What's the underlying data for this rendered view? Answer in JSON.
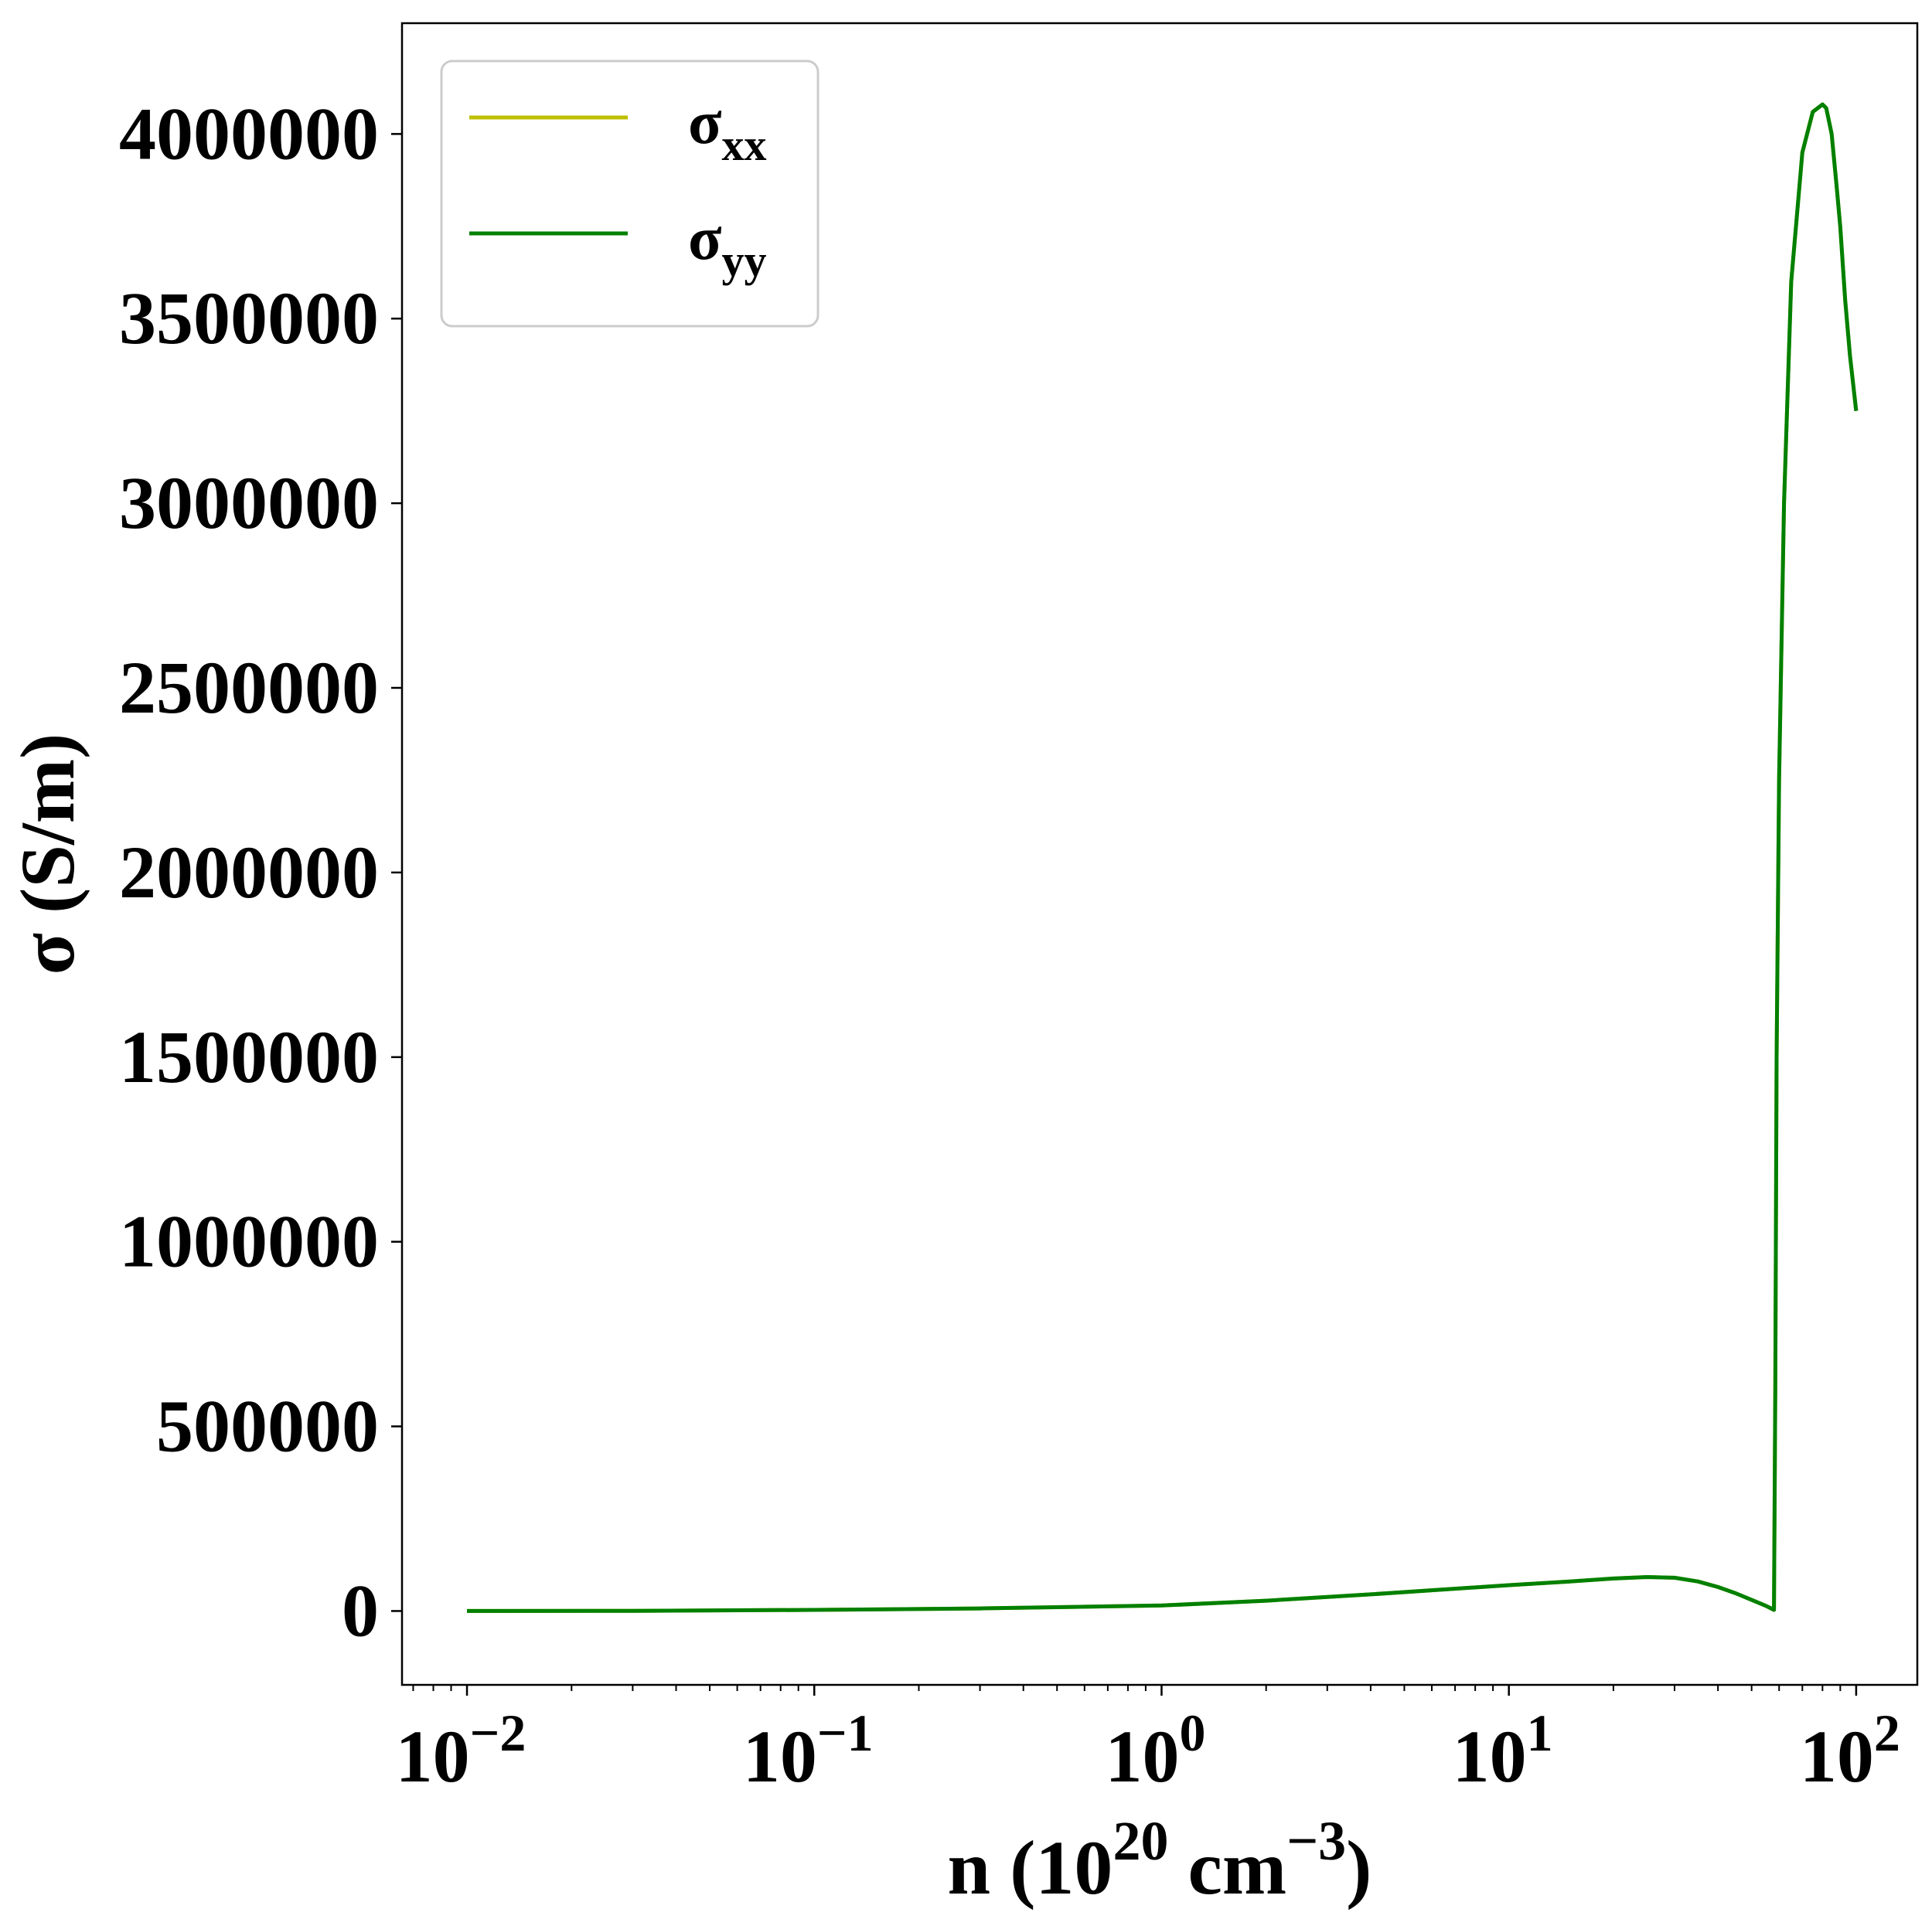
{
  "chart_data": {
    "type": "line",
    "xscale": "log",
    "xlim": [
      0.0065,
      150
    ],
    "ylim": [
      -200000,
      4300000
    ],
    "grid": false,
    "legend_position": "top-left",
    "xlabel": {
      "base": "n (10",
      "exp1": "20",
      "mid": " cm",
      "exp2": "−3",
      "end": ")"
    },
    "ylabel": "σ (S/m)",
    "x_ticks": [
      {
        "value": 0.01,
        "base": "10",
        "exp": "−2"
      },
      {
        "value": 0.1,
        "base": "10",
        "exp": "−1"
      },
      {
        "value": 1,
        "base": "10",
        "exp": "0"
      },
      {
        "value": 10,
        "base": "10",
        "exp": "1"
      },
      {
        "value": 100,
        "base": "10",
        "exp": "2"
      }
    ],
    "y_ticks": [
      {
        "value": 0,
        "label": "0"
      },
      {
        "value": 500000,
        "label": "500000"
      },
      {
        "value": 1000000,
        "label": "1000000"
      },
      {
        "value": 1500000,
        "label": "1500000"
      },
      {
        "value": 2000000,
        "label": "2000000"
      },
      {
        "value": 2500000,
        "label": "2500000"
      },
      {
        "value": 3000000,
        "label": "3000000"
      },
      {
        "value": 3500000,
        "label": "3500000"
      },
      {
        "value": 4000000,
        "label": "4000000"
      }
    ],
    "series": [
      {
        "name": "σ",
        "subscript": "xx",
        "color": "#bfbf00",
        "x": [
          0.01,
          0.03,
          0.1,
          0.3,
          1,
          2,
          4,
          10,
          15,
          20,
          25,
          30,
          35,
          40,
          45,
          50,
          55,
          58,
          58.5,
          59,
          60,
          62,
          65,
          70,
          75,
          80,
          82,
          85,
          88,
          90,
          93,
          96,
          100
        ],
        "y": [
          0,
          500,
          3000,
          7000,
          15000,
          28000,
          45000,
          70000,
          80000,
          88000,
          92000,
          90000,
          80000,
          65000,
          48000,
          30000,
          14000,
          3000,
          600000,
          1500000,
          2250000,
          3000000,
          3600000,
          3950000,
          4060000,
          4080000,
          4070000,
          4000000,
          3850000,
          3750000,
          3550000,
          3400000,
          3250000
        ]
      },
      {
        "name": "σ",
        "subscript": "yy",
        "color": "#008000",
        "x": [
          0.01,
          0.03,
          0.1,
          0.3,
          1,
          2,
          4,
          10,
          15,
          20,
          25,
          30,
          35,
          40,
          45,
          50,
          55,
          58,
          58.5,
          59,
          60,
          62,
          65,
          70,
          75,
          80,
          82,
          85,
          88,
          90,
          93,
          96,
          100
        ],
        "y": [
          0,
          500,
          3000,
          7000,
          15000,
          28000,
          45000,
          70000,
          80000,
          88000,
          92000,
          90000,
          80000,
          65000,
          48000,
          30000,
          14000,
          3000,
          600000,
          1500000,
          2250000,
          3000000,
          3600000,
          3950000,
          4060000,
          4080000,
          4070000,
          4000000,
          3850000,
          3750000,
          3550000,
          3400000,
          3250000
        ]
      }
    ]
  }
}
